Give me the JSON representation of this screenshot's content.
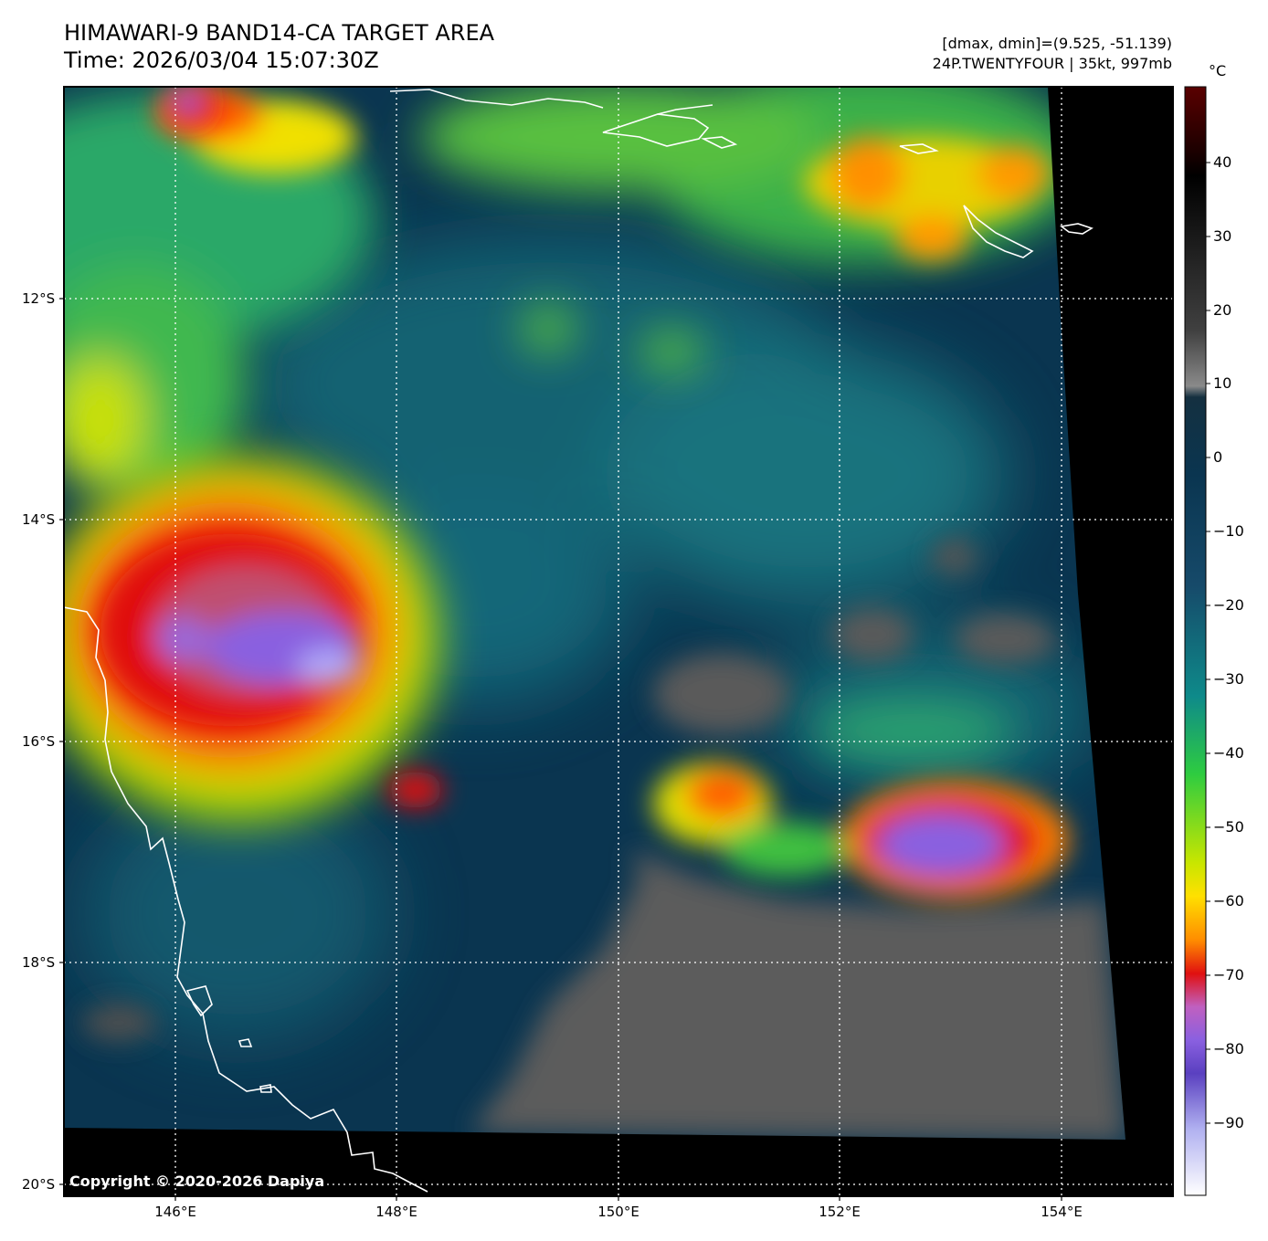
{
  "header": {
    "title_line1": "HIMAWARI-9 BAND14-CA TARGET AREA",
    "title_line2": "Time: 2026/03/04 15:07:30Z",
    "stats_line": "[dmax, dmin]=(9.525, -51.139)",
    "storm_line": "24P.TWENTYFOUR | 35kt, 997mb"
  },
  "map": {
    "lat_labels": [
      "12°S",
      "14°S",
      "16°S",
      "18°S",
      "20°S"
    ],
    "lon_labels": [
      "146°E",
      "148°E",
      "150°E",
      "152°E",
      "154°E"
    ],
    "copyright": "Copyright © 2020-2026 Dapiya"
  },
  "colorbar": {
    "unit": "°C",
    "ticks": [
      "40",
      "30",
      "20",
      "10",
      "0",
      "−10",
      "−20",
      "−30",
      "−40",
      "−50",
      "−60",
      "−70",
      "−80",
      "−90"
    ],
    "colors": {
      "max_dark_red": "#5a0000",
      "black": "#000000",
      "gray": "#8a8a8a",
      "dark_blue": "#0a3550",
      "teal": "#0e8a8a",
      "green": "#2ecc40",
      "yellow": "#ffe000",
      "orange": "#ff8c00",
      "red": "#e01010",
      "magenta": "#c060c0",
      "purple": "#8a60e0",
      "white": "#ffffff"
    }
  }
}
